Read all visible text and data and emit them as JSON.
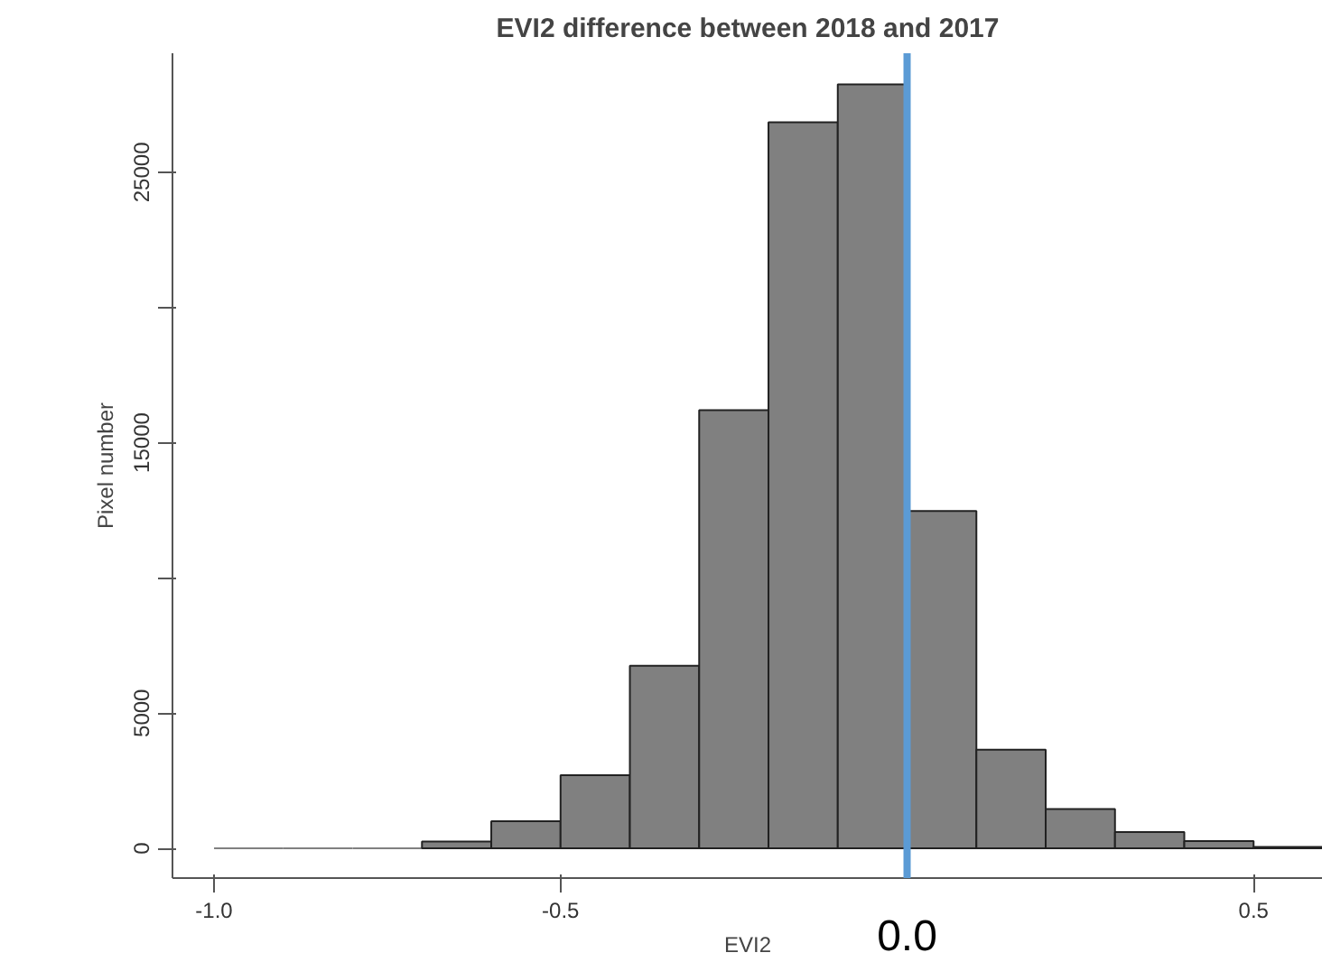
{
  "chart_data": {
    "type": "histogram",
    "title": "EVI2 difference between 2018 and 2017",
    "xlabel": "EVI2",
    "ylabel": "Pixel number",
    "bins": [
      -1.0,
      -0.9,
      -0.8,
      -0.7,
      -0.6,
      -0.5,
      -0.4,
      -0.3,
      -0.2,
      -0.1,
      0.0,
      0.1,
      0.2,
      0.3,
      0.4,
      0.5,
      0.6
    ],
    "values": [
      0,
      0,
      0,
      250,
      1000,
      2700,
      6750,
      16200,
      26850,
      28250,
      12470,
      3650,
      1450,
      600,
      270,
      50
    ],
    "color": "#808080",
    "xlim": [
      -1.06,
      0.6
    ],
    "ylim": [
      -1100,
      29400
    ],
    "xticks": [
      {
        "value": -1.0,
        "label": "-1.0"
      },
      -0.5,
      0.5
    ],
    "yticks": [
      0,
      5000,
      {
        "value": 10000,
        "label": null
      },
      15000,
      {
        "value": 20000,
        "label": null
      },
      25000
    ],
    "ref_lines": [
      {
        "axis": "x",
        "value": 0,
        "label": "0.0",
        "color": "#5b9bd5"
      }
    ],
    "grid": false
  }
}
